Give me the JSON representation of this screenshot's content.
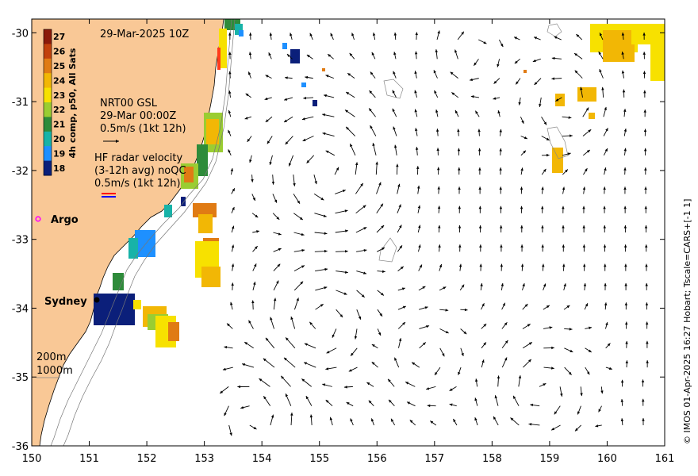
{
  "map": {
    "lon_range": [
      150,
      161
    ],
    "lat_range": [
      -36,
      -29.8
    ],
    "lon_ticks": [
      "150",
      "151",
      "152",
      "153",
      "154",
      "155",
      "156",
      "157",
      "158",
      "159",
      "160",
      "161"
    ],
    "lat_ticks": [
      "-30",
      "-31",
      "-32",
      "-33",
      "-34",
      "-35",
      "-36"
    ],
    "date_title": "29-Mar-2025 10Z",
    "colorbar": {
      "label": "4h comp, p50, All Sats",
      "ticks": [
        "27",
        "26",
        "25",
        "24",
        "23",
        "22",
        "21",
        "20",
        "19",
        "18"
      ],
      "colors": [
        "#8b1a0a",
        "#c2410c",
        "#e07b14",
        "#f2b705",
        "#f7e100",
        "#9acd32",
        "#2e8b3a",
        "#17b3a8",
        "#1e90ff",
        "#0b1f7a"
      ]
    },
    "legend_gsl": {
      "line1": "NRT00 GSL",
      "line2": "29-Mar 00:00Z",
      "line3": "0.5m/s (1kt 12h)"
    },
    "legend_hf": {
      "line1": "HF radar velocity",
      "line2": "(3-12h avg) noQC",
      "line3": "0.5m/s (1kt 12h)"
    },
    "argo_label": "Argo",
    "city_label": "Sydney",
    "depth_labels": [
      "200m",
      "1000m"
    ],
    "credit": "© IMOS 01-Apr-2025 16:27 Hobart; Tscale=CARS+[-1 1]",
    "colors": {
      "land": "#f9c896",
      "argo": "#ff00ff",
      "hf_red": "#ff0000",
      "hf_blue": "#0000ff"
    }
  }
}
